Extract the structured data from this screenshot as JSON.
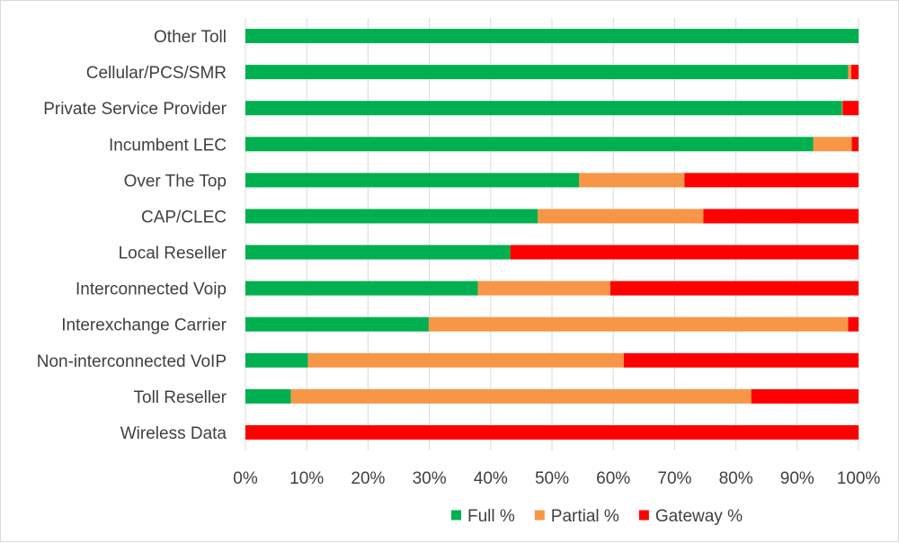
{
  "chart_data": {
    "type": "bar",
    "orientation": "horizontal",
    "stacked": "percent",
    "categories": [
      "Other Toll",
      "Cellular/PCS/SMR",
      "Private Service Provider",
      "Incumbent LEC",
      "Over The Top",
      "CAP/CLEC",
      "Local Reseller",
      "Interconnected Voip",
      "Interexchange Carrier",
      "Non-interconnected VoIP",
      "Toll Reseller",
      "Wireless Data"
    ],
    "series": [
      {
        "name": "Full %",
        "color": "#00b050",
        "values": [
          100,
          98.3,
          97.3,
          92.6,
          54.4,
          47.7,
          43.2,
          37.9,
          29.9,
          10.2,
          7.4,
          0
        ]
      },
      {
        "name": "Partial %",
        "color": "#f79646",
        "values": [
          0,
          0.5,
          0.1,
          6.3,
          17.2,
          27.0,
          0,
          21.6,
          68.4,
          51.5,
          75.1,
          0
        ]
      },
      {
        "name": "Gateway %",
        "color": "#ff0000",
        "values": [
          0,
          1.2,
          2.6,
          1.1,
          28.4,
          25.3,
          56.8,
          40.5,
          1.7,
          38.3,
          17.5,
          100
        ]
      }
    ],
    "x_ticks": [
      "0%",
      "10%",
      "20%",
      "30%",
      "40%",
      "50%",
      "60%",
      "70%",
      "80%",
      "90%",
      "100%"
    ],
    "xlim": [
      0,
      100
    ],
    "gridlines": true,
    "legend_position": "bottom"
  }
}
